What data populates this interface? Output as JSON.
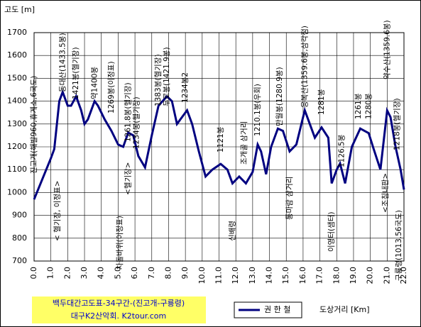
{
  "chart_data": {
    "type": "line",
    "title": "백두대간고도표-34구간-(진고개-구룡령)",
    "subtitle": "대구K2산악회. K2tour.com",
    "y_label": "고도 [m]",
    "x_label": "도상거리 [Km]",
    "x": [
      0,
      0.5,
      1.0,
      1.2,
      1.5,
      1.7,
      2.0,
      2.2,
      2.5,
      2.8,
      3.0,
      3.2,
      3.6,
      3.8,
      4.2,
      4.6,
      5.0,
      5.3,
      5.6,
      5.9,
      6.2,
      6.6,
      7.0,
      7.4,
      7.9,
      8.2,
      8.5,
      8.8,
      9.1,
      9.4,
      9.8,
      10.2,
      10.6,
      11.1,
      11.5,
      11.8,
      12.2,
      12.6,
      13.0,
      13.3,
      13.5,
      13.8,
      14.1,
      14.5,
      14.8,
      15.2,
      15.6,
      16.1,
      16.4,
      16.7,
      17.1,
      17.5,
      17.7,
      18.0,
      18.2,
      18.5,
      18.9,
      19.4,
      19.9,
      20.2,
      20.6,
      21.0,
      21.2,
      21.5,
      21.8,
      22.0
    ],
    "series": [
      {
        "name": "권 한 철",
        "color": "#000080",
        "values": [
          970,
          1060,
          1150,
          1190,
          1400,
          1440,
          1380,
          1380,
          1421,
          1360,
          1300,
          1320,
          1400,
          1380,
          1320,
          1270,
          1210,
          1200,
          1262,
          1250,
          1160,
          1110,
          1250,
          1380,
          1421,
          1400,
          1300,
          1330,
          1360,
          1300,
          1180,
          1070,
          1100,
          1125,
          1100,
          1040,
          1070,
          1040,
          1090,
          1210,
          1180,
          1080,
          1200,
          1280,
          1270,
          1180,
          1210,
          1360,
          1300,
          1240,
          1285,
          1240,
          1040,
          1100,
          1127,
          1040,
          1200,
          1280,
          1260,
          1190,
          1100,
          1359,
          1330,
          1200,
          1100,
          1013
        ]
      }
    ],
    "xlim": [
      0,
      22
    ],
    "ylim": [
      700,
      1700
    ],
    "xticks": [
      {
        "value": 0,
        "label": "0.0"
      },
      {
        "value": 1,
        "label": "1.0"
      },
      {
        "value": 2,
        "label": "2.0"
      },
      {
        "value": 3,
        "label": "3.0"
      },
      {
        "value": 4,
        "label": "4.0"
      },
      {
        "value": 5,
        "label": "5.0"
      },
      {
        "value": 6,
        "label": "6.0"
      },
      {
        "value": 7,
        "label": "7.0"
      },
      {
        "value": 8,
        "label": "8.0"
      },
      {
        "value": 9,
        "label": "9.0"
      },
      {
        "value": 10,
        "label": "10.0"
      },
      {
        "value": 11,
        "label": "11.0"
      },
      {
        "value": 12,
        "label": "12.0"
      },
      {
        "value": 13,
        "label": "13.0"
      },
      {
        "value": 14,
        "label": "14.0"
      },
      {
        "value": 15,
        "label": "15.0"
      },
      {
        "value": 16,
        "label": "16.0"
      },
      {
        "value": 17,
        "label": "17.0"
      },
      {
        "value": 18,
        "label": "18.0"
      },
      {
        "value": 19,
        "label": "19.0"
      },
      {
        "value": 20,
        "label": "20.0"
      },
      {
        "value": 21,
        "label": "21.0"
      },
      {
        "value": 22,
        "label": "22.0"
      }
    ],
    "yticks": [
      700,
      800,
      900,
      1000,
      1100,
      1200,
      1300,
      1400,
      1500,
      1600,
      1700
    ],
    "grid": true,
    "annotations": [
      "진고개(해발960,휴게소,6국도)",
      "< 헬기장, 이정표>",
      "동대산(1433.5봉)",
      "1421봉(헬기장)",
      "약1400봉",
      "1269봉(이정표)",
      "차돌바위(이정표)",
      "<헬기장>",
      "1261.8봉(헬기장)",
      "1234봉(헬기장)",
      "1383봉(헬기장)",
      "두로봉(1421.9봉)",
      "1234봉2",
      "1121봉",
      "신배령",
      "조개골 삼거리",
      "1210.1봉(우회)",
      "만월봉(1280.9봉)",
      "응복산(1359.6봉,삼각점)",
      "통마람 삼거리",
      "1281봉",
      "이영터(샘터)",
      "1126.5봉",
      "1261봉",
      "1280봉",
      "약수산(1359.6봉)",
      "1218봉(헬기장)",
      "<조침내판>",
      "구룡령(1013.56국도)"
    ]
  }
}
